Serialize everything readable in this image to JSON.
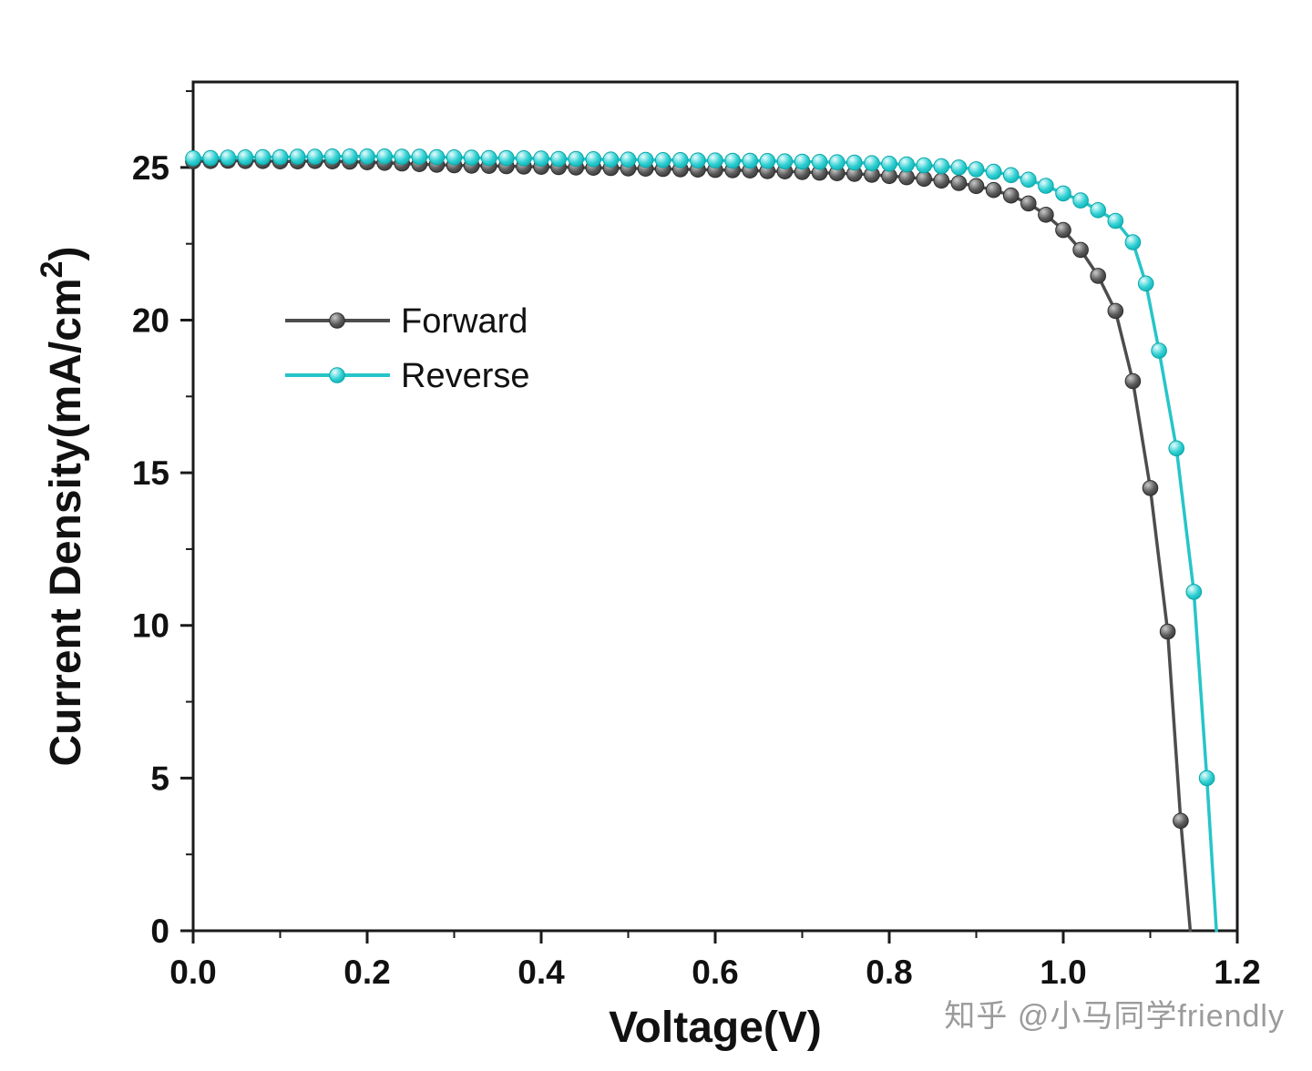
{
  "watermark": {
    "text": "知乎 @小马同学friendly"
  },
  "chart_data": {
    "type": "line",
    "title": "",
    "xlabel": "Voltage(V)",
    "ylabel": "Current Density(mA/cm²)",
    "xlim": [
      0,
      1.2
    ],
    "ylim": [
      0,
      27.8
    ],
    "grid": false,
    "xticks": {
      "values": [
        0,
        0.2,
        0.4,
        0.6,
        0.8,
        1.0,
        1.2
      ],
      "labels": [
        "0.0",
        "0.2",
        "0.4",
        "0.6",
        "0.8",
        "1.0",
        "1.2"
      ],
      "minor_step": 0.1
    },
    "yticks": {
      "values": [
        0,
        5,
        10,
        15,
        20,
        25
      ],
      "labels": [
        "0",
        "5",
        "10",
        "15",
        "20",
        "25"
      ],
      "minor_step": 2.5
    },
    "legend": {
      "position": "upper-left-inside",
      "labels": [
        "Forward",
        "Reverse"
      ]
    },
    "series": [
      {
        "name": "Forward",
        "line_color": "#4d4d4d",
        "marker_base": "#5a5a5a",
        "marker_highlight": "#c9c9c9",
        "marker_edge": "#2e2e2e",
        "points": [
          [
            0,
            25.2
          ],
          [
            0.02,
            25.21
          ],
          [
            0.04,
            25.22
          ],
          [
            0.06,
            25.21
          ],
          [
            0.08,
            25.21
          ],
          [
            0.1,
            25.2
          ],
          [
            0.12,
            25.2
          ],
          [
            0.14,
            25.21
          ],
          [
            0.16,
            25.2
          ],
          [
            0.18,
            25.19
          ],
          [
            0.2,
            25.17
          ],
          [
            0.22,
            25.15
          ],
          [
            0.24,
            25.13
          ],
          [
            0.26,
            25.11
          ],
          [
            0.28,
            25.09
          ],
          [
            0.3,
            25.07
          ],
          [
            0.32,
            25.06
          ],
          [
            0.34,
            25.05
          ],
          [
            0.36,
            25.04
          ],
          [
            0.38,
            25.03
          ],
          [
            0.4,
            25.02
          ],
          [
            0.42,
            25.01
          ],
          [
            0.44,
            25.0
          ],
          [
            0.46,
            24.99
          ],
          [
            0.48,
            24.98
          ],
          [
            0.5,
            24.97
          ],
          [
            0.52,
            24.96
          ],
          [
            0.54,
            24.95
          ],
          [
            0.56,
            24.94
          ],
          [
            0.58,
            24.93
          ],
          [
            0.6,
            24.92
          ],
          [
            0.62,
            24.91
          ],
          [
            0.64,
            24.9
          ],
          [
            0.66,
            24.88
          ],
          [
            0.68,
            24.87
          ],
          [
            0.7,
            24.85
          ],
          [
            0.72,
            24.83
          ],
          [
            0.74,
            24.81
          ],
          [
            0.76,
            24.79
          ],
          [
            0.78,
            24.76
          ],
          [
            0.8,
            24.72
          ],
          [
            0.82,
            24.68
          ],
          [
            0.84,
            24.63
          ],
          [
            0.86,
            24.57
          ],
          [
            0.88,
            24.49
          ],
          [
            0.9,
            24.39
          ],
          [
            0.92,
            24.26
          ],
          [
            0.94,
            24.08
          ],
          [
            0.96,
            23.82
          ],
          [
            0.98,
            23.45
          ],
          [
            1.0,
            22.95
          ],
          [
            1.02,
            22.3
          ],
          [
            1.04,
            21.45
          ],
          [
            1.06,
            20.3
          ],
          [
            1.08,
            18.0
          ],
          [
            1.1,
            14.5
          ],
          [
            1.12,
            9.8
          ],
          [
            1.135,
            3.6
          ],
          [
            1.146,
            0
          ]
        ]
      },
      {
        "name": "Reverse",
        "line_color": "#26c5c8",
        "marker_base": "#2fd0d3",
        "marker_highlight": "#e8fcfd",
        "marker_edge": "#0aa6a9",
        "points": [
          [
            0,
            25.3
          ],
          [
            0.02,
            25.31
          ],
          [
            0.04,
            25.32
          ],
          [
            0.06,
            25.33
          ],
          [
            0.08,
            25.34
          ],
          [
            0.1,
            25.34
          ],
          [
            0.12,
            25.35
          ],
          [
            0.14,
            25.35
          ],
          [
            0.16,
            25.36
          ],
          [
            0.18,
            25.36
          ],
          [
            0.2,
            25.36
          ],
          [
            0.22,
            25.36
          ],
          [
            0.24,
            25.35
          ],
          [
            0.26,
            25.35
          ],
          [
            0.28,
            25.34
          ],
          [
            0.3,
            25.33
          ],
          [
            0.32,
            25.32
          ],
          [
            0.34,
            25.31
          ],
          [
            0.36,
            25.31
          ],
          [
            0.38,
            25.3
          ],
          [
            0.4,
            25.29
          ],
          [
            0.42,
            25.28
          ],
          [
            0.44,
            25.28
          ],
          [
            0.46,
            25.27
          ],
          [
            0.48,
            25.26
          ],
          [
            0.5,
            25.26
          ],
          [
            0.52,
            25.25
          ],
          [
            0.54,
            25.24
          ],
          [
            0.56,
            25.24
          ],
          [
            0.58,
            25.23
          ],
          [
            0.6,
            25.23
          ],
          [
            0.62,
            25.22
          ],
          [
            0.64,
            25.22
          ],
          [
            0.66,
            25.21
          ],
          [
            0.68,
            25.2
          ],
          [
            0.7,
            25.19
          ],
          [
            0.72,
            25.18
          ],
          [
            0.74,
            25.17
          ],
          [
            0.76,
            25.16
          ],
          [
            0.78,
            25.14
          ],
          [
            0.8,
            25.12
          ],
          [
            0.82,
            25.1
          ],
          [
            0.84,
            25.07
          ],
          [
            0.86,
            25.04
          ],
          [
            0.88,
            25.0
          ],
          [
            0.9,
            24.94
          ],
          [
            0.92,
            24.86
          ],
          [
            0.94,
            24.75
          ],
          [
            0.96,
            24.6
          ],
          [
            0.98,
            24.4
          ],
          [
            1.0,
            24.15
          ],
          [
            1.02,
            23.92
          ],
          [
            1.04,
            23.6
          ],
          [
            1.06,
            23.25
          ],
          [
            1.08,
            22.55
          ],
          [
            1.095,
            21.2
          ],
          [
            1.11,
            19.0
          ],
          [
            1.13,
            15.8
          ],
          [
            1.15,
            11.1
          ],
          [
            1.165,
            5.0
          ],
          [
            1.176,
            0
          ]
        ]
      }
    ]
  }
}
